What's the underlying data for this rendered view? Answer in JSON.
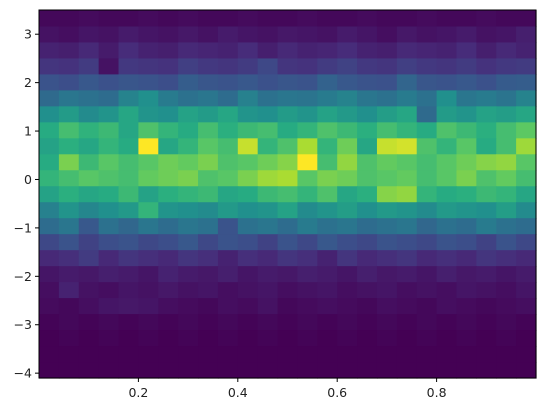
{
  "chart_data": {
    "type": "heatmap",
    "title": "",
    "xlabel": "",
    "ylabel": "",
    "colormap": "viridis",
    "color_range": [
      0,
      1
    ],
    "xlim": [
      0,
      1
    ],
    "ylim": [
      -4.1,
      3.5
    ],
    "x_ticks": [
      0.2,
      0.4,
      0.6,
      0.8
    ],
    "x_tick_labels": [
      "0.2",
      "0.4",
      "0.6",
      "0.8"
    ],
    "y_ticks": [
      3,
      2,
      1,
      0,
      -1,
      -2,
      -3,
      -4
    ],
    "y_tick_labels": [
      "3",
      "2",
      "1",
      "0",
      "−1",
      "−2",
      "−3",
      "−4"
    ],
    "x_bin_edges": [
      0,
      0.04,
      0.08,
      0.12,
      0.16,
      0.2,
      0.24,
      0.28,
      0.32,
      0.36,
      0.4,
      0.44,
      0.48,
      0.52,
      0.56,
      0.6,
      0.64,
      0.68,
      0.72,
      0.76,
      0.8,
      0.84,
      0.88,
      0.92,
      0.96,
      1.0
    ],
    "y_bin_edges": [
      -4.1,
      -3.77,
      -3.44,
      -3.11,
      -2.78,
      -2.45,
      -2.12,
      -1.79,
      -1.46,
      -1.13,
      -0.8,
      -0.47,
      -0.14,
      0.19,
      0.52,
      0.85,
      1.18,
      1.51,
      1.84,
      2.17,
      2.5,
      2.83,
      3.16,
      3.5
    ],
    "rows_top_to_bottom": [
      [
        0.02,
        0.02,
        0.03,
        0.02,
        0.02,
        0.03,
        0.02,
        0.03,
        0.02,
        0.02,
        0.03,
        0.02,
        0.02,
        0.03,
        0.02,
        0.02,
        0.03,
        0.02,
        0.02,
        0.03,
        0.02,
        0.02,
        0.03,
        0.02,
        0.02
      ],
      [
        0.05,
        0.04,
        0.06,
        0.05,
        0.08,
        0.06,
        0.05,
        0.07,
        0.05,
        0.08,
        0.06,
        0.05,
        0.07,
        0.06,
        0.05,
        0.08,
        0.06,
        0.04,
        0.07,
        0.05,
        0.06,
        0.08,
        0.05,
        0.06,
        0.09
      ],
      [
        0.1,
        0.09,
        0.12,
        0.08,
        0.13,
        0.1,
        0.09,
        0.12,
        0.11,
        0.1,
        0.13,
        0.09,
        0.12,
        0.1,
        0.11,
        0.13,
        0.1,
        0.09,
        0.12,
        0.11,
        0.1,
        0.13,
        0.09,
        0.12,
        0.1
      ],
      [
        0.16,
        0.15,
        0.18,
        0.05,
        0.17,
        0.16,
        0.15,
        0.19,
        0.17,
        0.16,
        0.18,
        0.22,
        0.16,
        0.15,
        0.18,
        0.2,
        0.17,
        0.16,
        0.19,
        0.17,
        0.16,
        0.18,
        0.15,
        0.17,
        0.18
      ],
      [
        0.26,
        0.24,
        0.28,
        0.25,
        0.27,
        0.26,
        0.24,
        0.3,
        0.27,
        0.26,
        0.28,
        0.25,
        0.27,
        0.26,
        0.32,
        0.28,
        0.26,
        0.25,
        0.33,
        0.27,
        0.26,
        0.28,
        0.25,
        0.29,
        0.3
      ],
      [
        0.35,
        0.4,
        0.38,
        0.36,
        0.45,
        0.5,
        0.42,
        0.38,
        0.4,
        0.36,
        0.44,
        0.38,
        0.4,
        0.39,
        0.42,
        0.45,
        0.4,
        0.38,
        0.42,
        0.38,
        0.5,
        0.4,
        0.42,
        0.39,
        0.45
      ],
      [
        0.5,
        0.55,
        0.48,
        0.52,
        0.6,
        0.52,
        0.5,
        0.58,
        0.55,
        0.6,
        0.52,
        0.5,
        0.55,
        0.52,
        0.58,
        0.54,
        0.5,
        0.56,
        0.6,
        0.35,
        0.55,
        0.52,
        0.58,
        0.56,
        0.6
      ],
      [
        0.62,
        0.7,
        0.65,
        0.68,
        0.6,
        0.72,
        0.66,
        0.62,
        0.7,
        0.64,
        0.68,
        0.7,
        0.62,
        0.66,
        0.72,
        0.68,
        0.64,
        0.7,
        0.66,
        0.62,
        0.72,
        0.68,
        0.64,
        0.7,
        0.75
      ],
      [
        0.58,
        0.64,
        0.6,
        0.66,
        0.62,
        1.0,
        0.6,
        0.66,
        0.74,
        0.7,
        0.92,
        0.66,
        0.72,
        0.88,
        0.66,
        0.78,
        0.6,
        0.92,
        0.94,
        0.72,
        0.66,
        0.74,
        0.62,
        0.7,
        0.86
      ],
      [
        0.62,
        0.8,
        0.68,
        0.74,
        0.7,
        0.74,
        0.78,
        0.76,
        0.8,
        0.72,
        0.74,
        0.78,
        0.82,
        1.0,
        0.7,
        0.84,
        0.72,
        0.76,
        0.74,
        0.7,
        0.74,
        0.78,
        0.82,
        0.84,
        0.74
      ],
      [
        0.66,
        0.7,
        0.74,
        0.72,
        0.7,
        0.76,
        0.78,
        0.8,
        0.72,
        0.74,
        0.8,
        0.86,
        0.88,
        0.74,
        0.8,
        0.78,
        0.72,
        0.74,
        0.76,
        0.7,
        0.74,
        0.8,
        0.72,
        0.76,
        0.7
      ],
      [
        0.58,
        0.64,
        0.6,
        0.62,
        0.68,
        0.58,
        0.64,
        0.66,
        0.68,
        0.6,
        0.62,
        0.68,
        0.7,
        0.66,
        0.72,
        0.6,
        0.64,
        0.82,
        0.84,
        0.66,
        0.62,
        0.64,
        0.68,
        0.66,
        0.6
      ],
      [
        0.44,
        0.52,
        0.46,
        0.5,
        0.54,
        0.66,
        0.52,
        0.5,
        0.48,
        0.54,
        0.5,
        0.52,
        0.58,
        0.48,
        0.52,
        0.56,
        0.5,
        0.54,
        0.52,
        0.48,
        0.54,
        0.52,
        0.5,
        0.56,
        0.48
      ],
      [
        0.36,
        0.4,
        0.28,
        0.38,
        0.34,
        0.4,
        0.36,
        0.4,
        0.38,
        0.26,
        0.38,
        0.4,
        0.36,
        0.42,
        0.38,
        0.4,
        0.36,
        0.38,
        0.4,
        0.34,
        0.38,
        0.36,
        0.42,
        0.38,
        0.36
      ],
      [
        0.22,
        0.26,
        0.2,
        0.24,
        0.26,
        0.22,
        0.24,
        0.28,
        0.22,
        0.26,
        0.24,
        0.2,
        0.26,
        0.22,
        0.28,
        0.24,
        0.22,
        0.26,
        0.24,
        0.22,
        0.26,
        0.24,
        0.2,
        0.26,
        0.22
      ],
      [
        0.12,
        0.14,
        0.18,
        0.12,
        0.16,
        0.14,
        0.12,
        0.16,
        0.14,
        0.1,
        0.14,
        0.12,
        0.16,
        0.14,
        0.1,
        0.16,
        0.12,
        0.14,
        0.16,
        0.12,
        0.14,
        0.12,
        0.16,
        0.14,
        0.12
      ],
      [
        0.06,
        0.08,
        0.07,
        0.09,
        0.08,
        0.06,
        0.1,
        0.08,
        0.07,
        0.09,
        0.06,
        0.08,
        0.07,
        0.09,
        0.08,
        0.06,
        0.09,
        0.07,
        0.08,
        0.06,
        0.09,
        0.07,
        0.08,
        0.06,
        0.08
      ],
      [
        0.04,
        0.1,
        0.05,
        0.04,
        0.06,
        0.05,
        0.07,
        0.05,
        0.06,
        0.04,
        0.05,
        0.06,
        0.04,
        0.05,
        0.06,
        0.04,
        0.05,
        0.06,
        0.04,
        0.05,
        0.04,
        0.06,
        0.05,
        0.04,
        0.06
      ],
      [
        0.03,
        0.02,
        0.04,
        0.06,
        0.07,
        0.06,
        0.04,
        0.03,
        0.02,
        0.04,
        0.03,
        0.05,
        0.02,
        0.03,
        0.04,
        0.03,
        0.02,
        0.04,
        0.03,
        0.02,
        0.04,
        0.03,
        0.02,
        0.03,
        0.04
      ],
      [
        0.01,
        0.02,
        0.01,
        0.02,
        0.01,
        0.02,
        0.01,
        0.02,
        0.01,
        0.02,
        0.01,
        0.02,
        0.01,
        0.02,
        0.01,
        0.02,
        0.01,
        0.02,
        0.01,
        0.02,
        0.01,
        0.02,
        0.01,
        0.02,
        0.01
      ],
      [
        0.0,
        0.01,
        0.0,
        0.01,
        0.0,
        0.01,
        0.0,
        0.01,
        0.0,
        0.01,
        0.0,
        0.01,
        0.0,
        0.01,
        0.0,
        0.01,
        0.0,
        0.01,
        0.0,
        0.01,
        0.0,
        0.01,
        0.0,
        0.01,
        0.0
      ],
      [
        0.0,
        0.0,
        0.0,
        0.0,
        0.0,
        0.0,
        0.0,
        0.0,
        0.0,
        0.0,
        0.0,
        0.0,
        0.0,
        0.0,
        0.0,
        0.0,
        0.0,
        0.0,
        0.0,
        0.0,
        0.0,
        0.0,
        0.0,
        0.0,
        0.0
      ],
      [
        0.0,
        0.0,
        0.0,
        0.0,
        0.0,
        0.0,
        0.0,
        0.0,
        0.0,
        0.0,
        0.0,
        0.0,
        0.0,
        0.0,
        0.0,
        0.0,
        0.0,
        0.0,
        0.0,
        0.0,
        0.0,
        0.0,
        0.0,
        0.0,
        0.0
      ]
    ]
  }
}
